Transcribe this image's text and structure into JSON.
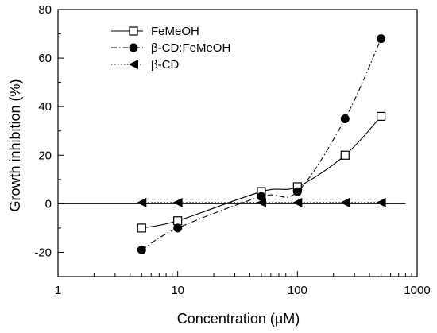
{
  "chart_data": {
    "type": "line",
    "xscale": "log",
    "xlabel": "Concentration (μM)",
    "ylabel": "Growth inhibition (%)",
    "xlim": [
      1,
      1000
    ],
    "ylim": [
      -30,
      80
    ],
    "xticks": [
      1,
      10,
      100,
      1000
    ],
    "xtick_labels": [
      "1",
      "10",
      "100",
      "1000"
    ],
    "yticks": [
      -20,
      0,
      20,
      40,
      60,
      80
    ],
    "ytick_labels": [
      "-20",
      "0",
      "20",
      "40",
      "60",
      "80"
    ],
    "reference_line_y": 0,
    "reference_line_xlim": [
      1,
      800
    ],
    "grid": false,
    "legend_position": "top-left",
    "series": [
      {
        "name": "FeMeOH",
        "marker": "open-square",
        "line_style": "solid",
        "color": "#000000",
        "x": [
          5,
          10,
          50,
          100,
          250,
          500
        ],
        "y": [
          -10,
          -7,
          5,
          7,
          20,
          36
        ]
      },
      {
        "name": "β-CD:FeMeOH",
        "marker": "filled-circle",
        "line_style": "dash-dot",
        "color": "#000000",
        "x": [
          5,
          10,
          50,
          100,
          250,
          500
        ],
        "y": [
          -19,
          -10,
          3,
          5,
          35,
          68
        ]
      },
      {
        "name": "β-CD",
        "marker": "filled-left-triangle",
        "line_style": "dotted",
        "color": "#000000",
        "x": [
          5,
          10,
          50,
          100,
          250,
          500
        ],
        "y": [
          0.5,
          0.5,
          0.5,
          0.5,
          0.5,
          0.5
        ]
      }
    ]
  }
}
